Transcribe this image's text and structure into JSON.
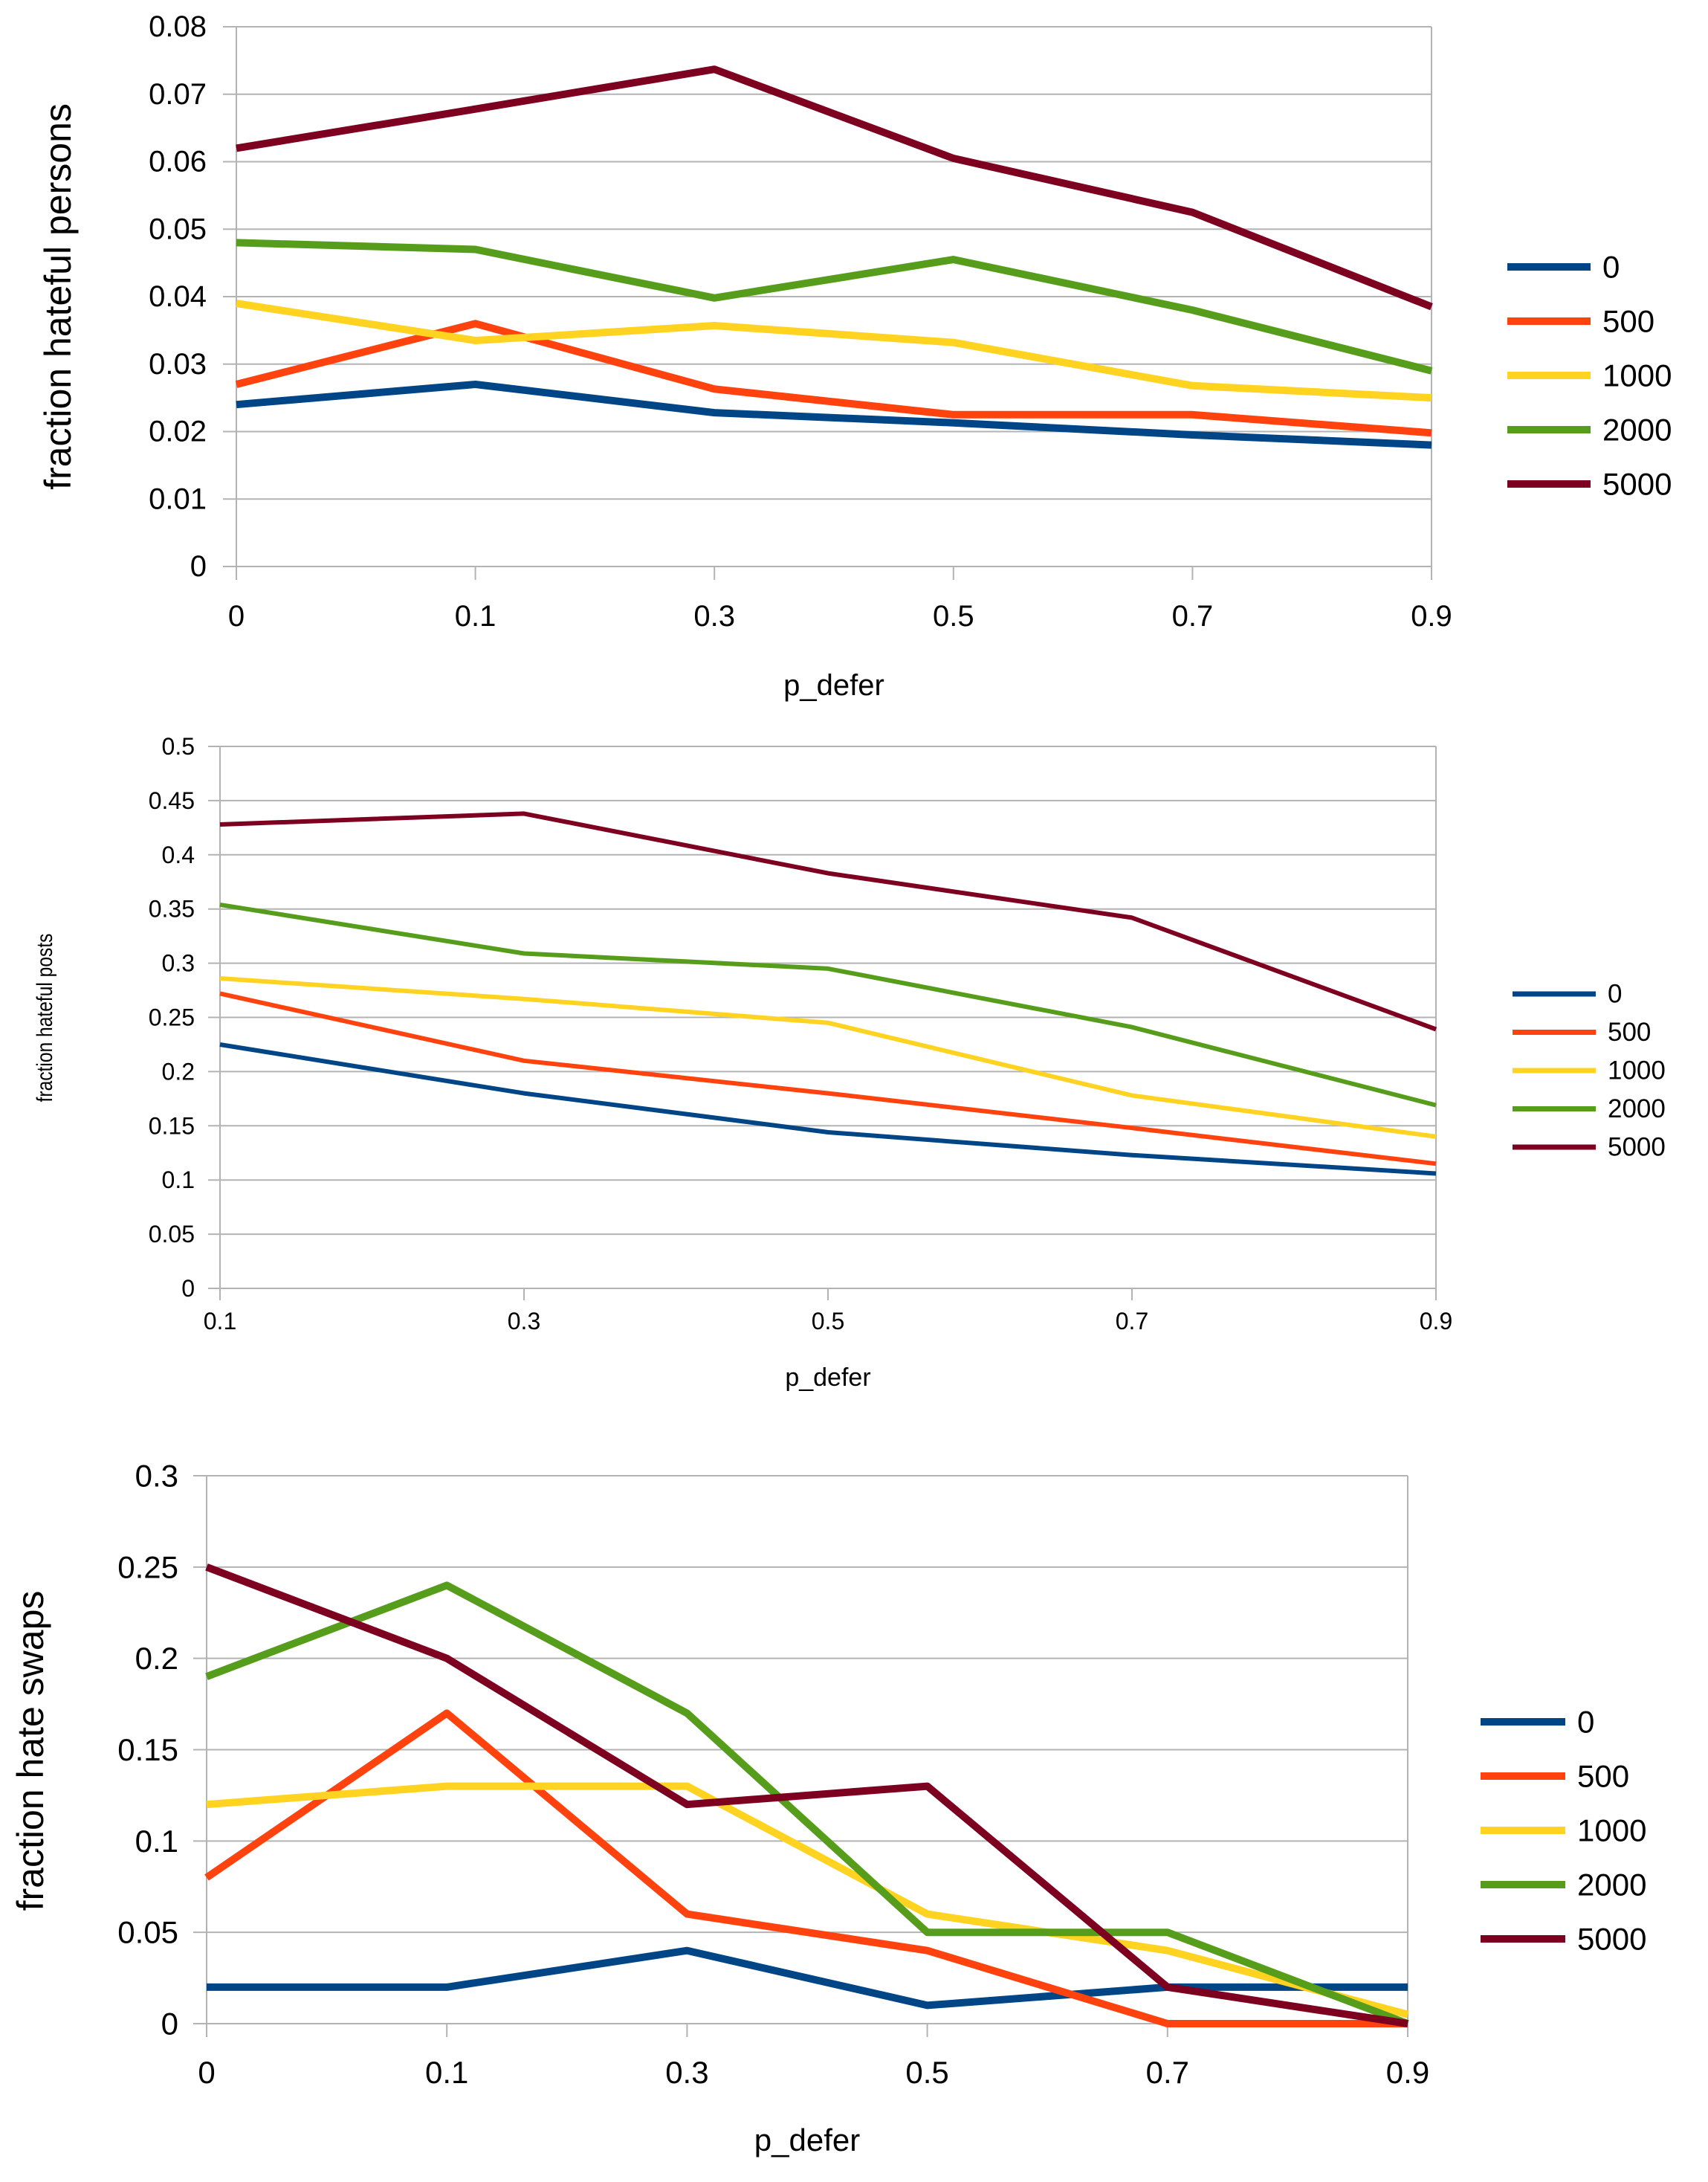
{
  "colors": {
    "s0": "#004586",
    "s500": "#ff420e",
    "s1000": "#ffd320",
    "s2000": "#579d1c",
    "s5000": "#7e0021",
    "grid": "#b3b3b3"
  },
  "chart_data": [
    {
      "id": "top",
      "type": "line",
      "title": "",
      "xlabel": "p_defer",
      "ylabel": "fraction hateful persons",
      "categories": [
        "0",
        "0.1",
        "0.3",
        "0.5",
        "0.7",
        "0.9"
      ],
      "yticks": [
        "0",
        "0.01",
        "0.02",
        "0.03",
        "0.04",
        "0.05",
        "0.06",
        "0.07",
        "0.08"
      ],
      "ylim": [
        0,
        0.08
      ],
      "grid": true,
      "legend_position": "right",
      "series": [
        {
          "name": "0",
          "color": "#004586",
          "values": [
            0.024,
            0.027,
            0.0228,
            0.0213,
            0.0195,
            0.018
          ]
        },
        {
          "name": "500",
          "color": "#ff420e",
          "values": [
            0.027,
            0.036,
            0.0263,
            0.0225,
            0.0225,
            0.0198
          ]
        },
        {
          "name": "1000",
          "color": "#ffd320",
          "values": [
            0.039,
            0.0335,
            0.0357,
            0.0332,
            0.0268,
            0.025
          ]
        },
        {
          "name": "2000",
          "color": "#579d1c",
          "values": [
            0.048,
            0.047,
            0.0398,
            0.0455,
            0.038,
            0.029
          ]
        },
        {
          "name": "5000",
          "color": "#7e0021",
          "values": [
            0.062,
            0.0678,
            0.0737,
            0.0605,
            0.0525,
            0.0385
          ]
        }
      ]
    },
    {
      "id": "middle",
      "type": "line",
      "title": "",
      "xlabel": "p_defer",
      "ylabel": "fraction hateful posts",
      "categories": [
        "0.1",
        "0.3",
        "0.5",
        "0.7",
        "0.9"
      ],
      "yticks": [
        "0",
        "0.05",
        "0.1",
        "0.15",
        "0.2",
        "0.25",
        "0.3",
        "0.35",
        "0.4",
        "0.45",
        "0.5"
      ],
      "ylim": [
        0,
        0.5
      ],
      "grid": true,
      "legend_position": "right",
      "series": [
        {
          "name": "0",
          "color": "#004586",
          "values": [
            0.225,
            0.18,
            0.144,
            0.123,
            0.106
          ]
        },
        {
          "name": "500",
          "color": "#ff420e",
          "values": [
            0.272,
            0.21,
            0.18,
            0.148,
            0.115
          ]
        },
        {
          "name": "1000",
          "color": "#ffd320",
          "values": [
            0.286,
            0.267,
            0.245,
            0.178,
            0.14
          ]
        },
        {
          "name": "2000",
          "color": "#579d1c",
          "values": [
            0.354,
            0.309,
            0.295,
            0.241,
            0.169
          ]
        },
        {
          "name": "5000",
          "color": "#7e0021",
          "values": [
            0.428,
            0.438,
            0.383,
            0.342,
            0.239
          ]
        }
      ]
    },
    {
      "id": "bottom",
      "type": "line",
      "title": "",
      "xlabel": "p_defer",
      "ylabel": "fraction hate swaps",
      "categories": [
        "0",
        "0.1",
        "0.3",
        "0.5",
        "0.7",
        "0.9"
      ],
      "yticks": [
        "0",
        "0.05",
        "0.1",
        "0.15",
        "0.2",
        "0.25",
        "0.3"
      ],
      "ylim": [
        0,
        0.3
      ],
      "grid": true,
      "legend_position": "right",
      "series": [
        {
          "name": "0",
          "color": "#004586",
          "values": [
            0.02,
            0.02,
            0.04,
            0.01,
            0.02,
            0.02
          ]
        },
        {
          "name": "500",
          "color": "#ff420e",
          "values": [
            0.08,
            0.17,
            0.06,
            0.04,
            0.0,
            0.0
          ]
        },
        {
          "name": "1000",
          "color": "#ffd320",
          "values": [
            0.12,
            0.13,
            0.13,
            0.06,
            0.04,
            0.005
          ]
        },
        {
          "name": "2000",
          "color": "#579d1c",
          "values": [
            0.19,
            0.24,
            0.17,
            0.05,
            0.05,
            0.0
          ]
        },
        {
          "name": "5000",
          "color": "#7e0021",
          "values": [
            0.25,
            0.2,
            0.12,
            0.13,
            0.02,
            0.0
          ]
        }
      ]
    }
  ]
}
